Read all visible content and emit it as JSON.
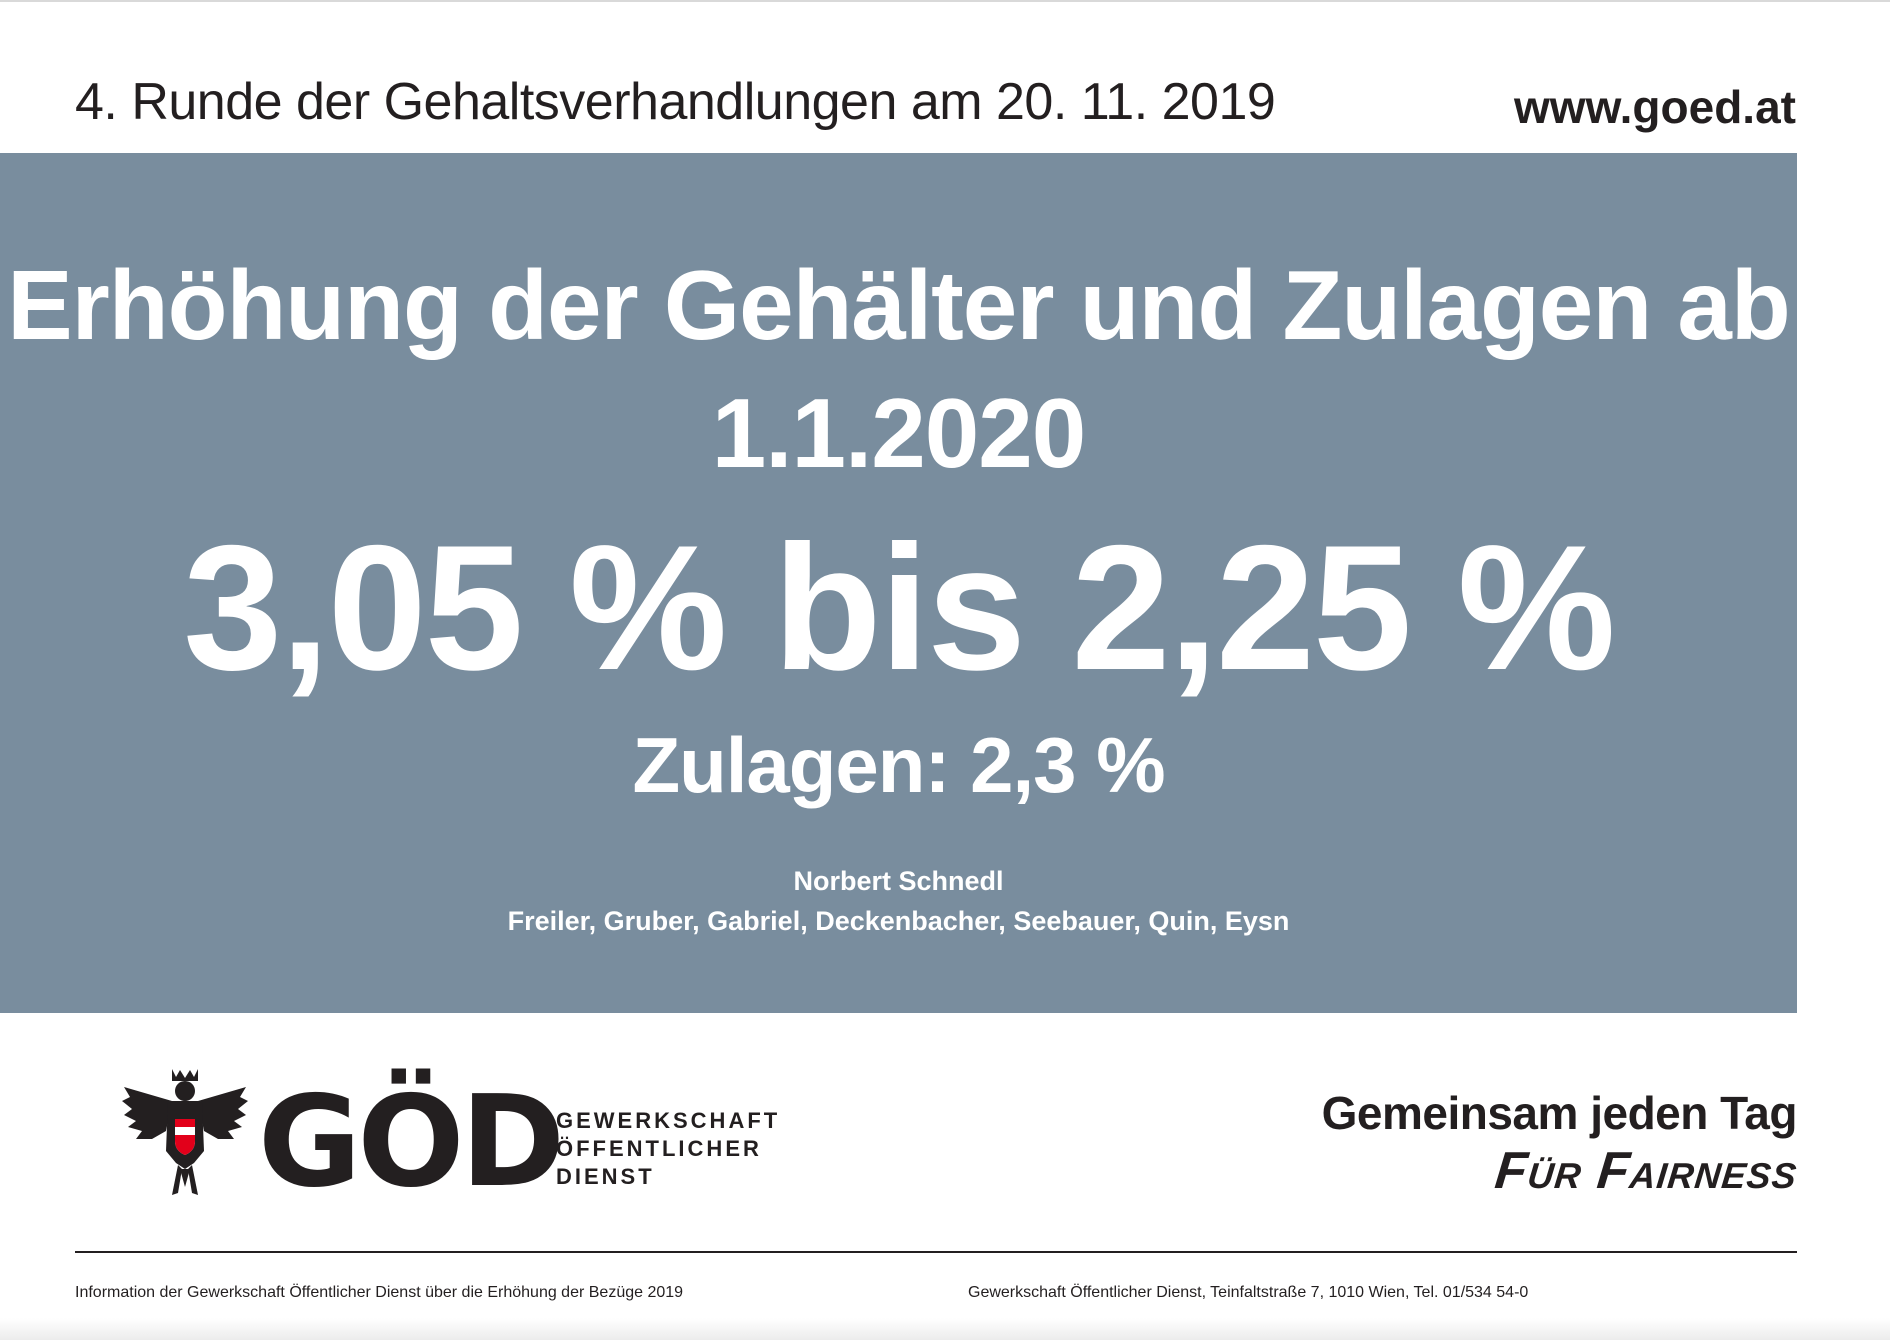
{
  "header": {
    "title": "4. Runde der Gehaltsverhandlungen am 20. 11. 2019",
    "url": "www.goed.at"
  },
  "panel": {
    "headline_line1": "Erhöhung der Gehälter und Zulagen ab",
    "headline_line2": "1.1.2020",
    "percent_range": "3,05 % bis 2,25 %",
    "allowances": "Zulagen: 2,3 %",
    "negotiator": "Norbert Schnedl",
    "negotiators_list": "Freiler, Gruber, Gabriel, Deckenbacher, Seebauer, Quin, Eysn",
    "background_color": "#798d9e"
  },
  "logo": {
    "word": "GÖD",
    "sub_line1": "GEWERKSCHAFT",
    "sub_line2": "ÖFFENTLICHER",
    "sub_line3": "DIENST",
    "emblem": "eagle-icon"
  },
  "slogan": {
    "line1": "Gemeinsam jeden Tag",
    "line2": "Für Fairness"
  },
  "footer": {
    "left": "Information der Gewerkschaft Öffentlicher Dienst über die Erhöhung der Bezüge 2019",
    "right": "Gewerkschaft Öffentlicher Dienst, Teinfaltstraße 7, 1010 Wien, Tel. 01/534 54-0"
  }
}
